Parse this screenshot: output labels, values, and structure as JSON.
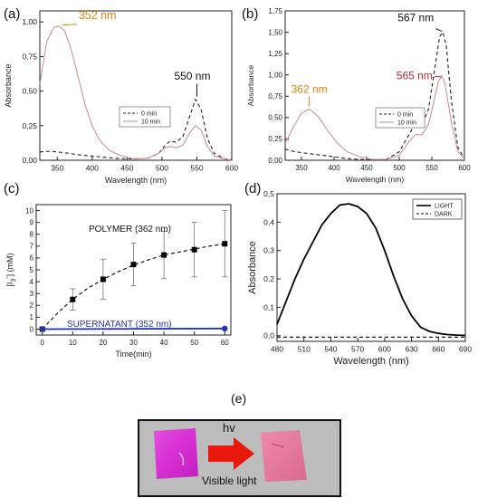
{
  "chart_data": [
    {
      "panel": "(a)",
      "type": "line",
      "xlabel": "Wavelength (nm)",
      "ylabel": "Absorbance",
      "xlim": [
        325,
        600
      ],
      "ylim": [
        0,
        1.08
      ],
      "xticks": [
        "350",
        "400",
        "450",
        "500",
        "550",
        "600"
      ],
      "yticks": [
        "0,00",
        "0,25",
        "0,50",
        "0,75",
        "1,00"
      ],
      "series": [
        {
          "name": "0 min",
          "style": "dashed",
          "color": "#222222",
          "x": [
            325,
            340,
            360,
            380,
            400,
            420,
            440,
            460,
            480,
            495,
            505,
            512,
            520,
            530,
            540,
            548,
            556,
            565,
            575,
            590,
            600
          ],
          "y": [
            0.06,
            0.065,
            0.055,
            0.04,
            0.03,
            0.02,
            0.012,
            0.01,
            0.015,
            0.05,
            0.11,
            0.14,
            0.13,
            0.17,
            0.32,
            0.44,
            0.37,
            0.16,
            0.05,
            0.01,
            0.005
          ]
        },
        {
          "name": "10 min",
          "style": "solid",
          "color": "#c98a8a",
          "x": [
            325,
            335,
            345,
            352,
            360,
            370,
            380,
            390,
            400,
            410,
            425,
            440,
            460,
            480,
            495,
            505,
            512,
            520,
            530,
            540,
            548,
            556,
            565,
            575,
            590,
            600
          ],
          "y": [
            0.55,
            0.86,
            0.96,
            0.97,
            0.94,
            0.8,
            0.6,
            0.4,
            0.25,
            0.15,
            0.07,
            0.035,
            0.01,
            0.015,
            0.05,
            0.09,
            0.1,
            0.09,
            0.11,
            0.2,
            0.25,
            0.22,
            0.1,
            0.03,
            0.01,
            0.0
          ]
        }
      ],
      "annotations": [
        {
          "text": "352 nm",
          "x": 352,
          "y": 0.97,
          "color": "#d4860e"
        },
        {
          "text": "550 nm",
          "x": 550,
          "y": 0.44,
          "color": "#111111"
        }
      ],
      "legend_position": "center-right"
    },
    {
      "panel": "(b)",
      "type": "line",
      "xlabel": "Wavelength (nm)",
      "ylabel": "Absorbance",
      "xlim": [
        325,
        600
      ],
      "ylim": [
        0,
        1.75
      ],
      "xticks": [
        "350",
        "400",
        "450",
        "500",
        "550",
        "600"
      ],
      "yticks": [
        "0,00",
        "0,25",
        "0,50",
        "0,75",
        "1,00",
        "1,25",
        "1,50",
        "1,75"
      ],
      "series": [
        {
          "name": "0 min",
          "style": "dashed",
          "color": "#222222",
          "x": [
            325,
            340,
            360,
            380,
            400,
            420,
            440,
            460,
            480,
            500,
            515,
            525,
            535,
            545,
            555,
            562,
            567,
            572,
            580,
            590,
            600
          ],
          "y": [
            0.13,
            0.1,
            0.08,
            0.06,
            0.04,
            0.02,
            0.01,
            0.005,
            0.01,
            0.1,
            0.3,
            0.44,
            0.42,
            0.6,
            1.1,
            1.45,
            1.5,
            1.35,
            0.7,
            0.15,
            0.02
          ]
        },
        {
          "name": "10 min",
          "style": "solid",
          "color": "#c98a8a",
          "x": [
            325,
            340,
            350,
            362,
            375,
            390,
            405,
            420,
            440,
            460,
            480,
            500,
            515,
            525,
            535,
            545,
            555,
            560,
            565,
            570,
            580,
            590,
            600
          ],
          "y": [
            0.2,
            0.42,
            0.55,
            0.6,
            0.52,
            0.35,
            0.2,
            0.1,
            0.04,
            0.01,
            0.01,
            0.06,
            0.22,
            0.3,
            0.3,
            0.42,
            0.75,
            0.92,
            0.99,
            0.9,
            0.45,
            0.1,
            0.02
          ]
        }
      ],
      "annotations": [
        {
          "text": "567 nm",
          "x": 567,
          "y": 1.5,
          "color": "#111111"
        },
        {
          "text": "565 nm",
          "x": 565,
          "y": 0.99,
          "color": "#c0272d"
        },
        {
          "text": "362 nm",
          "x": 362,
          "y": 0.6,
          "color": "#d4860e"
        }
      ],
      "legend_position": "center-right"
    },
    {
      "panel": "(c)",
      "type": "scatter",
      "xlabel": "Time(min)",
      "ylabel": "[I3-] (mM)",
      "xlim": [
        -2,
        62
      ],
      "ylim": [
        -0.5,
        10.5
      ],
      "xticks": [
        "0",
        "10",
        "20",
        "30",
        "40",
        "50",
        "60"
      ],
      "yticks": [
        "0",
        "1",
        "2",
        "3",
        "4",
        "5",
        "6",
        "7",
        "8",
        "9",
        "10"
      ],
      "series": [
        {
          "name": "POLYMER (362 nm)",
          "marker": "square",
          "color": "#000000",
          "x": [
            0,
            10,
            20,
            30,
            40,
            50,
            60
          ],
          "y": [
            0.0,
            2.5,
            4.2,
            5.45,
            6.25,
            6.7,
            7.2
          ],
          "err": [
            0.0,
            0.9,
            1.7,
            1.8,
            2.0,
            2.3,
            2.8
          ]
        },
        {
          "name": "SUPERNATANT (352 nm)",
          "marker": "circle",
          "color": "#2233aa",
          "x": [
            0,
            60
          ],
          "y": [
            0.0,
            0.05
          ]
        }
      ],
      "fit": {
        "style": "dashed",
        "x": [
          0,
          5,
          10,
          15,
          20,
          25,
          30,
          35,
          40,
          45,
          50,
          55,
          60
        ],
        "y": [
          0.0,
          1.35,
          2.5,
          3.45,
          4.2,
          4.85,
          5.4,
          5.85,
          6.25,
          6.5,
          6.75,
          7.0,
          7.2
        ]
      },
      "labels": [
        {
          "text": "POLYMER (362 nm)",
          "color": "#111111"
        },
        {
          "text": "SUPERNATANT (352 nm)",
          "color": "#2233aa"
        }
      ]
    },
    {
      "panel": "(d)",
      "type": "line",
      "xlabel": "Wavelength (nm)",
      "ylabel": "Absorbance",
      "xlim": [
        480,
        690
      ],
      "ylim": [
        -0.02,
        0.5
      ],
      "xticks": [
        "480",
        "510",
        "540",
        "570",
        "600",
        "630",
        "660",
        "690"
      ],
      "yticks": [
        "0,0",
        "0,1",
        "0,2",
        "0,3",
        "0,4",
        "0,5"
      ],
      "series": [
        {
          "name": "LIGHT",
          "style": "solid",
          "color": "#000000",
          "x": [
            480,
            490,
            500,
            510,
            520,
            530,
            540,
            550,
            560,
            570,
            580,
            590,
            600,
            610,
            620,
            630,
            640,
            650,
            660,
            670,
            680,
            690
          ],
          "y": [
            0.04,
            0.12,
            0.2,
            0.27,
            0.33,
            0.39,
            0.43,
            0.46,
            0.465,
            0.455,
            0.43,
            0.38,
            0.3,
            0.21,
            0.13,
            0.07,
            0.03,
            0.015,
            0.008,
            0.004,
            0.002,
            0.001
          ]
        },
        {
          "name": "DARK",
          "style": "dashed",
          "color": "#000000",
          "x": [
            480,
            690
          ],
          "y": [
            -0.005,
            -0.005
          ]
        }
      ],
      "legend_position": "top-right"
    }
  ],
  "photo": {
    "panel_label": "(e)",
    "arrow_label": "hv",
    "caption": "Visible light",
    "colors": {
      "before": "#d62fd2",
      "after": "#e57a9c",
      "arrow": "#e8180a"
    }
  },
  "panel_labels": [
    "(a)",
    "(b)",
    "(c)",
    "(d)"
  ]
}
